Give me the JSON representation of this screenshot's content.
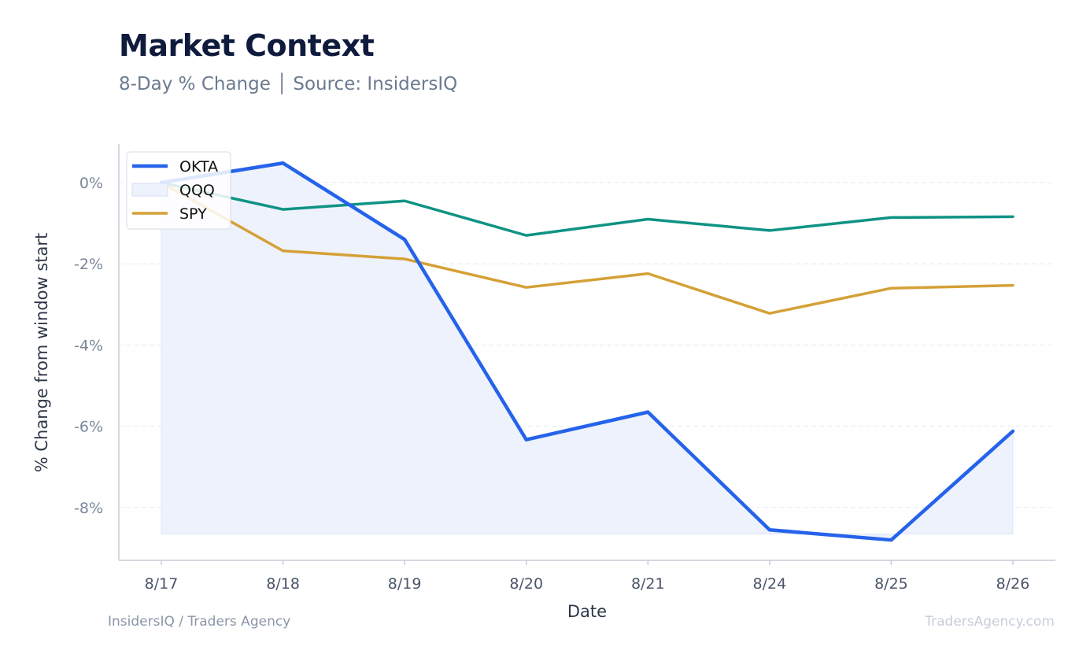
{
  "header": {
    "title": "Market Context",
    "subtitle": "8-Day % Change │ Source: InsidersIQ"
  },
  "footer": {
    "left": "InsidersIQ / Traders Agency",
    "right": "TradersAgency.com"
  },
  "colors": {
    "okta": "#2563eb",
    "qqq": "#0e9384",
    "spy": "#d4a137",
    "okta_fill": "#eef2fc",
    "grid": "#e6eaf0",
    "axis": "#c5ccd6"
  },
  "chart_data": {
    "type": "line",
    "xlabel": "Date",
    "ylabel": "% Change from window start",
    "ylim": [
      -9.3,
      0.95
    ],
    "yticks": [
      0,
      -2,
      -4,
      -6,
      -8
    ],
    "ytick_labels": [
      "0%",
      "-2%",
      "-4%",
      "-6%",
      "-8%"
    ],
    "categories": [
      "8/17",
      "8/18",
      "8/19",
      "8/20",
      "8/21",
      "8/24",
      "8/25",
      "8/26"
    ],
    "grid": "horizontal dashed",
    "legend_position": "top-left",
    "series": [
      {
        "name": "OKTA",
        "values": [
          0.0,
          0.48,
          -1.4,
          -6.33,
          -5.65,
          -8.55,
          -8.8,
          -6.12
        ],
        "filled": true
      },
      {
        "name": "QQQ",
        "values": [
          0.0,
          -0.66,
          -0.45,
          -1.3,
          -0.9,
          -1.18,
          -0.86,
          -0.84
        ]
      },
      {
        "name": "SPY",
        "values": [
          0.0,
          -1.68,
          -1.88,
          -2.58,
          -2.24,
          -3.22,
          -2.6,
          -2.53
        ]
      }
    ]
  }
}
